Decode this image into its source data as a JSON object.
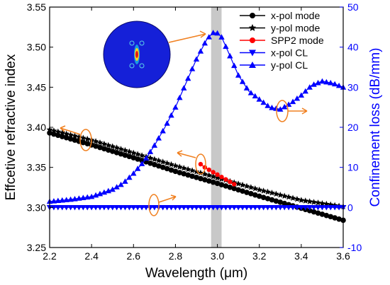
{
  "chart_data": {
    "type": "line",
    "xlabel": "Wavelength (μm)",
    "ylabel_left": "Effcetive refractive index",
    "ylabel_right": "Confinement loss (dB/mm)",
    "xlim": [
      2.2,
      3.6
    ],
    "ylim_left": [
      3.25,
      3.55
    ],
    "ylim_right": [
      -10,
      50
    ],
    "x_ticks": [
      "2.2",
      "2.4",
      "2.6",
      "2.8",
      "3.0",
      "3.2",
      "3.4",
      "3.6"
    ],
    "y_left_ticks": [
      "3.25",
      "3.30",
      "3.35",
      "3.40",
      "3.45",
      "3.50",
      "3.55"
    ],
    "y_right_ticks": [
      "-10",
      "0",
      "10",
      "20",
      "30",
      "40",
      "50"
    ],
    "highlight_band": [
      2.97,
      3.02
    ],
    "colors": {
      "black": "#000000",
      "red": "#ff0000",
      "blue": "#0000ff",
      "band": "#c8c8c8",
      "annotation": "#f08020"
    },
    "series": [
      {
        "name": "x-pol mode",
        "axis": "left",
        "marker": "circle",
        "color": "#000000",
        "x": [
          2.2,
          2.4,
          2.6,
          2.8,
          3.0,
          3.2,
          3.4,
          3.6
        ],
        "y": [
          3.393,
          3.378,
          3.362,
          3.345,
          3.33,
          3.314,
          3.299,
          3.284
        ]
      },
      {
        "name": "y-pol mode",
        "axis": "left",
        "marker": "star",
        "color": "#000000",
        "x": [
          2.2,
          2.4,
          2.6,
          2.8,
          3.0,
          3.2,
          3.4,
          3.6
        ],
        "y": [
          3.397,
          3.384,
          3.368,
          3.352,
          3.337,
          3.322,
          3.309,
          3.301
        ]
      },
      {
        "name": "SPP2 mode",
        "axis": "left",
        "marker": "circle",
        "color": "#ff0000",
        "x": [
          2.92,
          2.94,
          2.96,
          2.98,
          3.0,
          3.02,
          3.04,
          3.06,
          3.08
        ],
        "y": [
          3.354,
          3.35,
          3.347,
          3.344,
          3.341,
          3.338,
          3.335,
          3.332,
          3.329
        ]
      },
      {
        "name": "x-pol CL",
        "axis": "right",
        "marker": "triangle-down",
        "color": "#0000ff",
        "x": [
          2.2,
          3.6
        ],
        "y": [
          0.0,
          0.0
        ]
      },
      {
        "name": "y-pol CL",
        "axis": "right",
        "marker": "triangle-up",
        "color": "#0000ff",
        "x": [
          2.2,
          2.3,
          2.4,
          2.5,
          2.55,
          2.6,
          2.65,
          2.7,
          2.75,
          2.8,
          2.85,
          2.9,
          2.95,
          2.98,
          3.0,
          3.02,
          3.05,
          3.1,
          3.15,
          3.2,
          3.25,
          3.3,
          3.35,
          3.4,
          3.45,
          3.5,
          3.55,
          3.6
        ],
        "y": [
          1.5,
          2.0,
          2.7,
          4.5,
          6.0,
          8.5,
          11.5,
          15.5,
          20.0,
          25.0,
          31.0,
          37.0,
          42.0,
          43.6,
          43.5,
          42.5,
          39.0,
          33.0,
          29.0,
          27.0,
          25.0,
          24.5,
          26.0,
          28.0,
          30.5,
          31.5,
          31.0,
          30.0
        ]
      }
    ]
  }
}
